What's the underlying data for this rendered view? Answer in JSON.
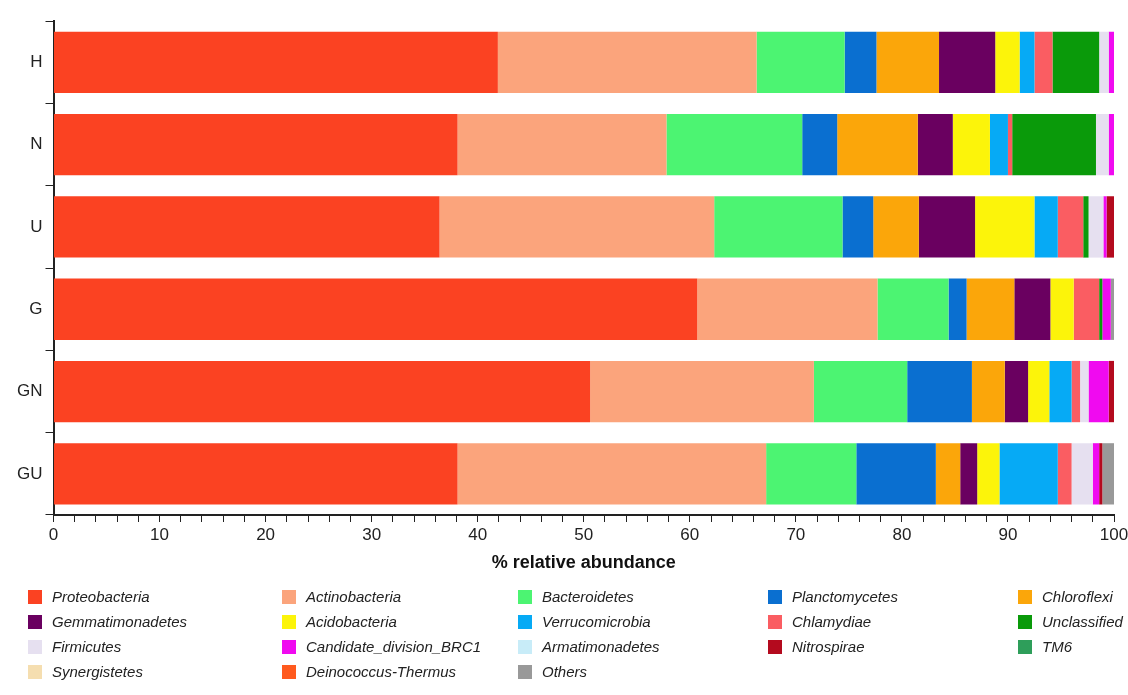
{
  "chart_data": {
    "type": "bar",
    "orientation": "horizontal",
    "stacked": true,
    "xlabel": "% relative abundance",
    "categories": [
      "H",
      "N",
      "U",
      "G",
      "GN",
      "GU"
    ],
    "xlim": [
      0,
      100
    ],
    "xticks": [
      0,
      {
        "value": 2,
        "label": null
      },
      {
        "value": 4,
        "label": null
      },
      {
        "value": 6,
        "label": null
      },
      {
        "value": 8,
        "label": null
      },
      10,
      {
        "value": 12,
        "label": null
      },
      {
        "value": 14,
        "label": null
      },
      {
        "value": 16,
        "label": null
      },
      {
        "value": 18,
        "label": null
      },
      20,
      {
        "value": 22,
        "label": null
      },
      {
        "value": 24,
        "label": null
      },
      {
        "value": 26,
        "label": null
      },
      {
        "value": 28,
        "label": null
      },
      30,
      {
        "value": 32,
        "label": null
      },
      {
        "value": 34,
        "label": null
      },
      {
        "value": 36,
        "label": null
      },
      {
        "value": 38,
        "label": null
      },
      40,
      {
        "value": 42,
        "label": null
      },
      {
        "value": 44,
        "label": null
      },
      {
        "value": 46,
        "label": null
      },
      {
        "value": 48,
        "label": null
      },
      50,
      {
        "value": 52,
        "label": null
      },
      {
        "value": 54,
        "label": null
      },
      {
        "value": 56,
        "label": null
      },
      {
        "value": 58,
        "label": null
      },
      60,
      {
        "value": 62,
        "label": null
      },
      {
        "value": 64,
        "label": null
      },
      {
        "value": 66,
        "label": null
      },
      {
        "value": 68,
        "label": null
      },
      70,
      {
        "value": 72,
        "label": null
      },
      {
        "value": 74,
        "label": null
      },
      {
        "value": 76,
        "label": null
      },
      {
        "value": 78,
        "label": null
      },
      80,
      {
        "value": 82,
        "label": null
      },
      {
        "value": 84,
        "label": null
      },
      {
        "value": 86,
        "label": null
      },
      {
        "value": 88,
        "label": null
      },
      90,
      {
        "value": 92,
        "label": null
      },
      {
        "value": 94,
        "label": null
      },
      {
        "value": 96,
        "label": null
      },
      {
        "value": 98,
        "label": null
      },
      100
    ],
    "grid": false,
    "legend": "bottom",
    "series": [
      {
        "name": "Proteobacteria",
        "color": "#fb4222",
        "values": [
          41.9,
          38.1,
          36.4,
          60.7,
          50.6,
          38.1
        ]
      },
      {
        "name": "Actinobacteria",
        "color": "#fba47c",
        "values": [
          24.4,
          19.7,
          25.9,
          17.0,
          21.1,
          29.1
        ]
      },
      {
        "name": "Bacteroidetes",
        "color": "#4cf472",
        "values": [
          8.3,
          12.8,
          12.1,
          6.7,
          8.8,
          8.5
        ]
      },
      {
        "name": "Planctomycetes",
        "color": "#0a6fd0",
        "values": [
          3.0,
          3.3,
          2.9,
          1.7,
          6.1,
          7.5
        ]
      },
      {
        "name": "Chloroflexi",
        "color": "#fba60a",
        "values": [
          5.9,
          7.6,
          4.3,
          4.5,
          3.1,
          2.3
        ]
      },
      {
        "name": "Gemmatimonadetes",
        "color": "#6a0060",
        "values": [
          5.3,
          3.3,
          5.3,
          3.4,
          2.2,
          1.6
        ]
      },
      {
        "name": "Acidobacteria",
        "color": "#fcf40a",
        "values": [
          2.3,
          3.5,
          5.6,
          2.2,
          2.0,
          2.1
        ]
      },
      {
        "name": "Verrucomicrobia",
        "color": "#06aaf5",
        "values": [
          1.4,
          1.7,
          2.2,
          0,
          2.1,
          5.5
        ]
      },
      {
        "name": "Chlamydiae",
        "color": "#fa5d62",
        "values": [
          1.7,
          0.4,
          2.4,
          2.4,
          0.8,
          1.3
        ]
      },
      {
        "name": "Unclassified",
        "color": "#0a9a0a",
        "values": [
          4.4,
          7.9,
          0.5,
          0.3,
          0,
          0
        ]
      },
      {
        "name": "Firmicutes",
        "color": "#e6e0f0",
        "values": [
          0.9,
          1.2,
          1.4,
          0,
          0.8,
          2.0
        ]
      },
      {
        "name": "Candidate_division_BRC1",
        "color": "#f00af0",
        "values": [
          0.5,
          0.5,
          0.3,
          0.8,
          1.9,
          0.6
        ]
      },
      {
        "name": "Armatimonadetes",
        "color": "#c8ecf8",
        "values": [
          0,
          0,
          0,
          0,
          0,
          0
        ]
      },
      {
        "name": "Nitrospirae",
        "color": "#b40a1e",
        "values": [
          0,
          0,
          0.7,
          0,
          0.5,
          0.3
        ]
      },
      {
        "name": "TM6",
        "color": "#2e9e5a",
        "values": [
          0,
          0,
          0,
          0,
          0,
          0
        ]
      },
      {
        "name": "Synergistetes",
        "color": "#f5deb0",
        "values": [
          0,
          0,
          0,
          0,
          0,
          0
        ]
      },
      {
        "name": "Deinococcus-Thermus",
        "color": "#ff5a1e",
        "values": [
          0,
          0,
          0,
          0,
          0,
          0
        ]
      },
      {
        "name": "Others",
        "color": "#999999",
        "values": [
          0,
          0,
          0,
          0.3,
          0,
          1.1
        ]
      }
    ]
  }
}
